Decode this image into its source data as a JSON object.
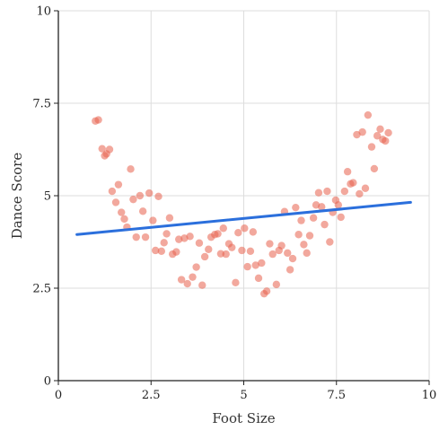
{
  "chart_data": {
    "type": "scatter",
    "title": "",
    "xlabel": "Foot Size",
    "ylabel": "Dance Score",
    "xlim": [
      0,
      10
    ],
    "ylim": [
      0,
      10
    ],
    "xticks": [
      "0",
      "2.5",
      "5",
      "7.5",
      "10"
    ],
    "yticks": [
      "0",
      "2.5",
      "5",
      "7.5",
      "10"
    ],
    "xtick_values": [
      0,
      2.5,
      5,
      7.5,
      10
    ],
    "ytick_values": [
      0,
      2.5,
      5,
      7.5,
      10
    ],
    "grid": true,
    "series": [
      {
        "type": "scatter",
        "color": "#e8604c",
        "points": [
          [
            1.0,
            7.02
          ],
          [
            1.08,
            7.05
          ],
          [
            1.18,
            6.27
          ],
          [
            1.25,
            6.08
          ],
          [
            1.3,
            6.13
          ],
          [
            1.38,
            6.25
          ],
          [
            1.45,
            5.12
          ],
          [
            1.55,
            4.82
          ],
          [
            1.62,
            5.3
          ],
          [
            1.7,
            4.55
          ],
          [
            1.78,
            4.37
          ],
          [
            1.85,
            4.15
          ],
          [
            1.95,
            5.72
          ],
          [
            2.02,
            4.9
          ],
          [
            2.1,
            3.88
          ],
          [
            2.2,
            5.0
          ],
          [
            2.28,
            4.58
          ],
          [
            2.35,
            3.88
          ],
          [
            2.45,
            5.07
          ],
          [
            2.55,
            4.33
          ],
          [
            2.62,
            3.52
          ],
          [
            2.7,
            4.98
          ],
          [
            2.78,
            3.5
          ],
          [
            2.85,
            3.73
          ],
          [
            2.92,
            3.97
          ],
          [
            3.0,
            4.4
          ],
          [
            3.08,
            3.42
          ],
          [
            3.18,
            3.48
          ],
          [
            3.25,
            3.82
          ],
          [
            3.32,
            2.73
          ],
          [
            3.4,
            3.85
          ],
          [
            3.48,
            2.62
          ],
          [
            3.55,
            3.9
          ],
          [
            3.62,
            2.8
          ],
          [
            3.72,
            3.07
          ],
          [
            3.8,
            3.72
          ],
          [
            3.88,
            2.58
          ],
          [
            3.95,
            3.35
          ],
          [
            4.05,
            3.55
          ],
          [
            4.12,
            3.88
          ],
          [
            4.22,
            3.95
          ],
          [
            4.3,
            3.97
          ],
          [
            4.38,
            3.43
          ],
          [
            4.45,
            4.12
          ],
          [
            4.52,
            3.42
          ],
          [
            4.6,
            3.7
          ],
          [
            4.68,
            3.6
          ],
          [
            4.78,
            2.65
          ],
          [
            4.85,
            4.0
          ],
          [
            4.95,
            3.52
          ],
          [
            5.02,
            4.12
          ],
          [
            5.1,
            3.08
          ],
          [
            5.18,
            3.5
          ],
          [
            5.25,
            4.02
          ],
          [
            5.32,
            3.12
          ],
          [
            5.4,
            2.77
          ],
          [
            5.48,
            3.18
          ],
          [
            5.55,
            2.35
          ],
          [
            5.62,
            2.42
          ],
          [
            5.7,
            3.7
          ],
          [
            5.78,
            3.42
          ],
          [
            5.88,
            2.6
          ],
          [
            5.95,
            3.52
          ],
          [
            6.02,
            3.65
          ],
          [
            6.1,
            4.57
          ],
          [
            6.18,
            3.45
          ],
          [
            6.25,
            3.0
          ],
          [
            6.32,
            3.3
          ],
          [
            6.4,
            4.68
          ],
          [
            6.48,
            3.95
          ],
          [
            6.55,
            4.33
          ],
          [
            6.62,
            3.68
          ],
          [
            6.7,
            3.45
          ],
          [
            6.78,
            3.92
          ],
          [
            6.88,
            4.4
          ],
          [
            6.95,
            4.75
          ],
          [
            7.02,
            5.08
          ],
          [
            7.1,
            4.7
          ],
          [
            7.18,
            4.22
          ],
          [
            7.25,
            5.12
          ],
          [
            7.32,
            3.75
          ],
          [
            7.4,
            4.55
          ],
          [
            7.48,
            4.88
          ],
          [
            7.55,
            4.75
          ],
          [
            7.62,
            4.42
          ],
          [
            7.72,
            5.12
          ],
          [
            7.8,
            5.65
          ],
          [
            7.88,
            5.32
          ],
          [
            7.95,
            5.35
          ],
          [
            8.05,
            6.65
          ],
          [
            8.12,
            5.05
          ],
          [
            8.2,
            6.72
          ],
          [
            8.28,
            5.2
          ],
          [
            8.35,
            7.18
          ],
          [
            8.45,
            6.32
          ],
          [
            8.52,
            5.73
          ],
          [
            8.6,
            6.62
          ],
          [
            8.68,
            6.8
          ],
          [
            8.75,
            6.52
          ],
          [
            8.82,
            6.48
          ],
          [
            8.9,
            6.7
          ]
        ]
      },
      {
        "type": "line",
        "color": "#2b6fdc",
        "x": [
          0.5,
          9.5
        ],
        "y": [
          3.95,
          4.82
        ]
      }
    ]
  }
}
